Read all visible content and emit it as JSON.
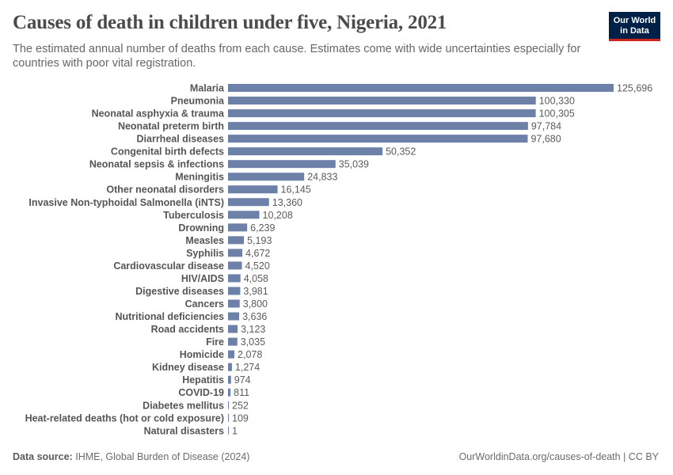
{
  "header": {
    "title": "Causes of death in children under five, Nigeria, 2021",
    "subtitle": "The estimated annual number of deaths from each cause. Estimates come with wide uncertainties especially for countries with poor vital registration."
  },
  "logo": {
    "line1": "Our World",
    "line2": "in Data",
    "bg_color": "#002147",
    "accent_color": "#ce261e"
  },
  "footer": {
    "source_label": "Data source:",
    "source_text": "IHME, Global Burden of Disease (2024)",
    "url_text": "OurWorldinData.org/causes-of-death | CC BY"
  },
  "chart_data": {
    "type": "bar",
    "orientation": "horizontal",
    "bar_color": "#6d80a8",
    "categories": [
      "Malaria",
      "Pneumonia",
      "Neonatal asphyxia & trauma",
      "Neonatal preterm birth",
      "Diarrheal diseases",
      "Congenital birth defects",
      "Neonatal sepsis & infections",
      "Meningitis",
      "Other neonatal disorders",
      "Invasive Non-typhoidal Salmonella (iNTS)",
      "Tuberculosis",
      "Drowning",
      "Measles",
      "Syphilis",
      "Cardiovascular disease",
      "HIV/AIDS",
      "Digestive diseases",
      "Cancers",
      "Nutritional deficiencies",
      "Road accidents",
      "Fire",
      "Homicide",
      "Kidney disease",
      "Hepatitis",
      "COVID-19",
      "Diabetes mellitus",
      "Heat-related deaths (hot or cold exposure)",
      "Natural disasters"
    ],
    "values": [
      125696,
      100330,
      100305,
      97784,
      97680,
      50352,
      35039,
      24833,
      16145,
      13360,
      10208,
      6239,
      5193,
      4672,
      4520,
      4058,
      3981,
      3800,
      3636,
      3123,
      3035,
      2078,
      1274,
      974,
      811,
      252,
      109,
      1
    ],
    "value_labels": [
      "125,696",
      "100,330",
      "100,305",
      "97,784",
      "97,680",
      "50,352",
      "35,039",
      "24,833",
      "16,145",
      "13,360",
      "10,208",
      "6,239",
      "5,193",
      "4,672",
      "4,520",
      "4,058",
      "3,981",
      "3,800",
      "3,636",
      "3,123",
      "3,035",
      "2,078",
      "1,274",
      "974",
      "811",
      "252",
      "109",
      "1"
    ],
    "xlim": [
      0,
      125696
    ]
  }
}
